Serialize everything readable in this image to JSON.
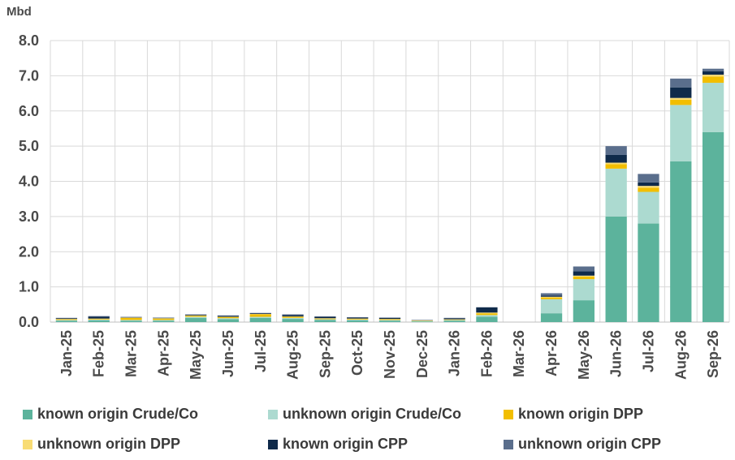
{
  "chart_data": {
    "type": "bar",
    "stacked": true,
    "ylabel": "Mbd",
    "ylim": [
      0,
      8
    ],
    "yticks": [
      "0.0",
      "1.0",
      "2.0",
      "3.0",
      "4.0",
      "5.0",
      "6.0",
      "7.0",
      "8.0"
    ],
    "grid": true,
    "legend_position": "bottom",
    "categories": [
      "Jan-25",
      "Feb-25",
      "Mar-25",
      "Apr-25",
      "May-25",
      "Jun-25",
      "Jul-25",
      "Aug-25",
      "Sep-25",
      "Oct-25",
      "Nov-25",
      "Dec-25",
      "Jan-26",
      "Feb-26",
      "Mar-26",
      "Apr-26",
      "May-26",
      "Jun-26",
      "Jul-26",
      "Aug-26",
      "Sep-26"
    ],
    "series": [
      {
        "name": "known origin Crude/Co",
        "color": "#5cb39c",
        "values": [
          0.04,
          0.05,
          0.04,
          0.04,
          0.12,
          0.08,
          0.12,
          0.09,
          0.06,
          0.05,
          0.04,
          0.02,
          0.04,
          0.15,
          0.0,
          0.25,
          0.62,
          3.0,
          2.8,
          4.57,
          5.4
        ]
      },
      {
        "name": "unknown origin Crude/Co",
        "color": "#acdad0",
        "values": [
          0.02,
          0.02,
          0.02,
          0.02,
          0.03,
          0.03,
          0.03,
          0.03,
          0.02,
          0.02,
          0.02,
          0.01,
          0.02,
          0.05,
          0.0,
          0.4,
          0.6,
          1.36,
          0.9,
          1.6,
          1.4
        ]
      },
      {
        "name": "known origin DPP",
        "color": "#f2be00",
        "values": [
          0.02,
          0.02,
          0.06,
          0.04,
          0.03,
          0.03,
          0.07,
          0.03,
          0.02,
          0.02,
          0.02,
          0.01,
          0.01,
          0.05,
          0.0,
          0.05,
          0.07,
          0.13,
          0.12,
          0.15,
          0.18
        ]
      },
      {
        "name": "unknown origin DPP",
        "color": "#f8dc74",
        "values": [
          0.01,
          0.01,
          0.01,
          0.01,
          0.01,
          0.01,
          0.01,
          0.01,
          0.01,
          0.01,
          0.01,
          0.01,
          0.01,
          0.02,
          0.0,
          0.02,
          0.03,
          0.04,
          0.05,
          0.05,
          0.05
        ]
      },
      {
        "name": "known origin CPP",
        "color": "#0f2a4a",
        "values": [
          0.02,
          0.05,
          0.01,
          0.01,
          0.02,
          0.03,
          0.02,
          0.04,
          0.04,
          0.03,
          0.03,
          0.01,
          0.03,
          0.15,
          0.0,
          0.03,
          0.12,
          0.22,
          0.1,
          0.3,
          0.1
        ]
      },
      {
        "name": "unknown origin CPP",
        "color": "#5a6e8c",
        "values": [
          0.01,
          0.02,
          0.01,
          0.01,
          0.01,
          0.01,
          0.01,
          0.02,
          0.01,
          0.01,
          0.01,
          0.0,
          0.01,
          0.0,
          0.0,
          0.07,
          0.14,
          0.25,
          0.24,
          0.25,
          0.07
        ]
      }
    ]
  }
}
